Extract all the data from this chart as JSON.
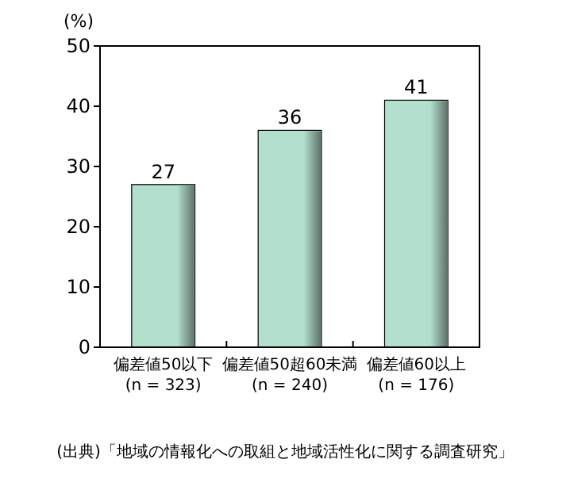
{
  "chart_data": {
    "type": "bar",
    "ylabel": "(%)",
    "categories": [
      "偏差値50以下\n(n = 323)",
      "偏差値50超60未満\n(n = 240)",
      "偏差値60以上\n(n = 176)"
    ],
    "values": [
      27,
      36,
      41
    ],
    "color": "#b3e0cc",
    "ylim": [
      0,
      50
    ],
    "yticks": [
      0,
      10,
      20,
      30,
      40,
      50
    ],
    "data_labels": true,
    "grid": false,
    "annotations": [
      "(出典)「地域の情報化への取組と地域活性化に関する調査研究」"
    ]
  }
}
